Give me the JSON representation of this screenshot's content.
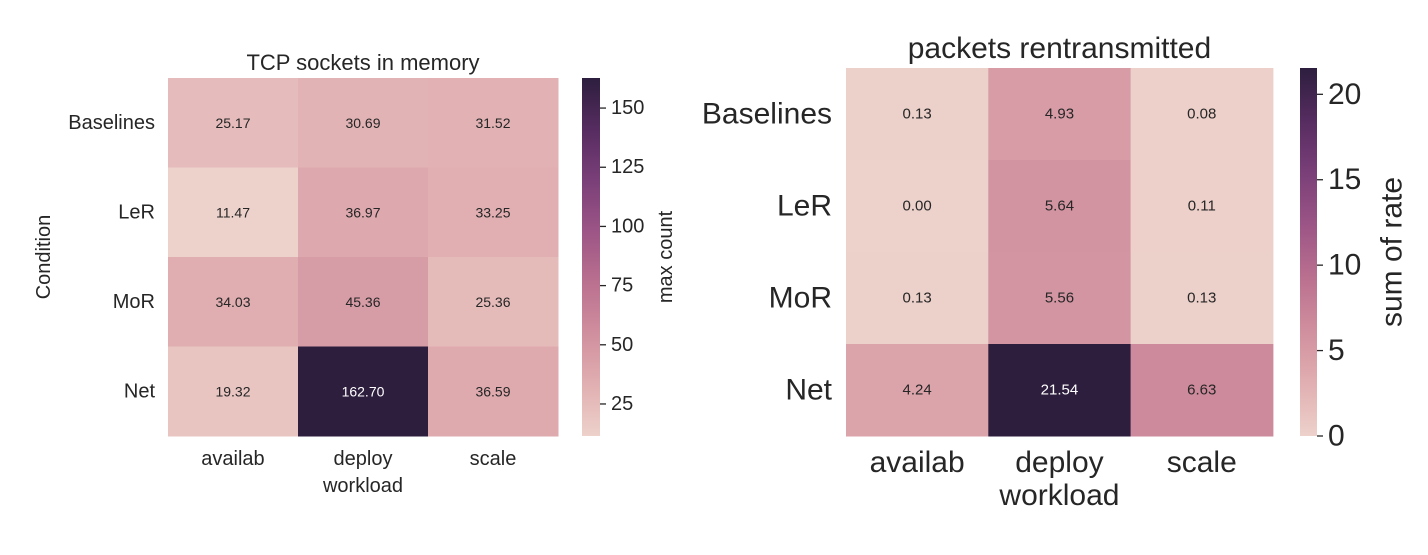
{
  "chart_data": [
    {
      "type": "heatmap",
      "title": "TCP sockets in memory",
      "xlabel": "workload",
      "ylabel": "Condition",
      "colorbar_label": "max count",
      "x_categories": [
        "availab",
        "deploy",
        "scale"
      ],
      "y_categories": [
        "Baselines",
        "LeR",
        "MoR",
        "Net"
      ],
      "values": [
        [
          25.17,
          30.69,
          31.52
        ],
        [
          11.47,
          36.97,
          33.25
        ],
        [
          34.03,
          45.36,
          25.36
        ],
        [
          19.32,
          162.7,
          36.59
        ]
      ],
      "value_labels": [
        [
          "25.17",
          "30.69",
          "31.52"
        ],
        [
          "11.47",
          "36.97",
          "33.25"
        ],
        [
          "34.03",
          "45.36",
          "25.36"
        ],
        [
          "19.32",
          "162.70",
          "36.59"
        ]
      ],
      "color_range": [
        11.47,
        162.7
      ],
      "colorbar_ticks": [
        25,
        50,
        75,
        100,
        125,
        150
      ]
    },
    {
      "type": "heatmap",
      "title": "packets rentransmitted",
      "xlabel": "workload",
      "ylabel": "",
      "colorbar_label": "sum of rate",
      "x_categories": [
        "availab",
        "deploy",
        "scale"
      ],
      "y_categories": [
        "Baselines",
        "LeR",
        "MoR",
        "Net"
      ],
      "values": [
        [
          0.13,
          4.93,
          0.08
        ],
        [
          0.0,
          5.64,
          0.11
        ],
        [
          0.13,
          5.56,
          0.13
        ],
        [
          4.24,
          21.54,
          6.63
        ]
      ],
      "value_labels": [
        [
          "0.13",
          "4.93",
          "0.08"
        ],
        [
          "0.00",
          "5.64",
          "0.11"
        ],
        [
          "0.13",
          "5.56",
          "0.13"
        ],
        [
          "4.24",
          "21.54",
          "6.63"
        ]
      ],
      "color_range": [
        0.0,
        21.54
      ],
      "colorbar_ticks": [
        0,
        5,
        10,
        15,
        20
      ]
    }
  ],
  "colors": {
    "colormap": [
      "#edd1cb",
      "#e1afb1",
      "#d08f9e",
      "#ba708f",
      "#9c5586",
      "#7a3f78",
      "#562c60",
      "#2d1e3e"
    ]
  }
}
